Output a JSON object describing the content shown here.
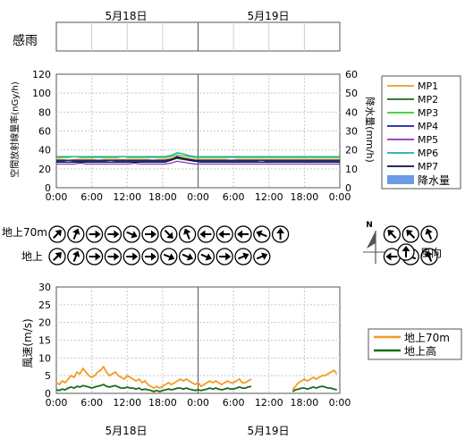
{
  "dates": {
    "day1": "5月18日",
    "day2": "5月19日"
  },
  "rain_panel": {
    "label": "感雨"
  },
  "dose_chart": {
    "type": "line",
    "ylabel_left": "空間放射線量率(nGy/h)",
    "ylabel_right": "降水量(mm/h)",
    "ylim_left": [
      0,
      120
    ],
    "ylim_right": [
      0,
      60
    ],
    "left_ticks": [
      "0",
      "20",
      "40",
      "60",
      "80",
      "100",
      "120"
    ],
    "right_ticks": [
      "0",
      "10",
      "20",
      "30",
      "40",
      "50",
      "60"
    ],
    "x_ticks": [
      "0:00",
      "6:00",
      "12:00",
      "18:00",
      "0:00",
      "6:00",
      "12:00",
      "18:00",
      "0:00"
    ],
    "grid": true,
    "legend_placement": "right",
    "series": [
      {
        "name": "MP1",
        "color": "#f59a23",
        "values": [
          30,
          30,
          29,
          30,
          30,
          30,
          30,
          29,
          30,
          30,
          30,
          30,
          30,
          30,
          30,
          30,
          29,
          30,
          30,
          31,
          33,
          32,
          31,
          30,
          30,
          30,
          30,
          30,
          30,
          29,
          30,
          30,
          30,
          30,
          30,
          30,
          30,
          30,
          30,
          30,
          30,
          30,
          30,
          30,
          30,
          30,
          30,
          30
        ]
      },
      {
        "name": "MP2",
        "color": "#1a6b1a",
        "values": [
          28,
          28,
          27,
          28,
          28,
          28,
          28,
          28,
          28,
          27,
          28,
          28,
          28,
          28,
          28,
          28,
          28,
          28,
          28,
          29,
          31,
          30,
          29,
          28,
          28,
          28,
          28,
          28,
          28,
          28,
          28,
          28,
          28,
          28,
          27,
          28,
          28,
          28,
          28,
          28,
          28,
          28,
          28,
          28,
          28,
          28,
          28,
          28
        ]
      },
      {
        "name": "MP3",
        "color": "#33cc33",
        "values": [
          32,
          32,
          32,
          33,
          32,
          32,
          32,
          32,
          32,
          32,
          32,
          33,
          32,
          32,
          32,
          32,
          32,
          32,
          32,
          33,
          35,
          34,
          33,
          32,
          32,
          32,
          32,
          32,
          32,
          32,
          32,
          32,
          32,
          32,
          32,
          32,
          32,
          32,
          32,
          32,
          32,
          32,
          32,
          32,
          32,
          32,
          32,
          32
        ]
      },
      {
        "name": "MP4",
        "color": "#1a1ab3",
        "values": [
          29,
          29,
          29,
          29,
          29,
          29,
          29,
          29,
          29,
          29,
          29,
          29,
          29,
          29,
          29,
          29,
          29,
          29,
          29,
          30,
          32,
          31,
          30,
          29,
          29,
          29,
          29,
          29,
          29,
          29,
          29,
          29,
          29,
          29,
          29,
          29,
          29,
          29,
          29,
          29,
          29,
          29,
          29,
          29,
          29,
          29,
          29,
          29
        ]
      },
      {
        "name": "MP5",
        "color": "#8e2dc5",
        "values": [
          25,
          25,
          25,
          25,
          26,
          25,
          25,
          25,
          25,
          25,
          25,
          25,
          25,
          26,
          25,
          25,
          25,
          25,
          25,
          26,
          28,
          27,
          26,
          25,
          25,
          25,
          25,
          25,
          25,
          25,
          25,
          25,
          25,
          25,
          25,
          25,
          25,
          25,
          25,
          25,
          25,
          25,
          25,
          25,
          25,
          25,
          25,
          25
        ]
      },
      {
        "name": "MP6",
        "color": "#26a6a6",
        "values": [
          33,
          33,
          33,
          33,
          33,
          33,
          33,
          33,
          33,
          33,
          33,
          33,
          33,
          33,
          33,
          33,
          33,
          33,
          33,
          34,
          37,
          36,
          34,
          33,
          33,
          33,
          33,
          33,
          33,
          33,
          33,
          33,
          33,
          33,
          33,
          33,
          33,
          33,
          33,
          33,
          33,
          33,
          33,
          33,
          33,
          33,
          33,
          33
        ]
      },
      {
        "name": "MP7",
        "color": "#0d0d33",
        "values": [
          27,
          27,
          27,
          27,
          27,
          27,
          27,
          27,
          27,
          27,
          27,
          27,
          27,
          27,
          27,
          27,
          27,
          27,
          27,
          29,
          33,
          31,
          29,
          28,
          27,
          27,
          27,
          27,
          27,
          27,
          27,
          27,
          27,
          27,
          27,
          27,
          27,
          27,
          27,
          27,
          27,
          27,
          27,
          27,
          27,
          27,
          27,
          27
        ]
      }
    ],
    "bar_series": {
      "name": "降水量",
      "color": "#6c9ae6",
      "values": []
    }
  },
  "wind_direction": {
    "row_labels": [
      "地上70m",
      "地上"
    ],
    "rows": [
      [
        "NE",
        "NNE",
        "E",
        "E",
        "ESE",
        "E",
        "SE",
        "NNW",
        "W",
        "W",
        "W",
        "WNW",
        "N",
        "",
        "",
        "",
        "",
        "",
        "NW",
        "NW",
        "NNW"
      ],
      [
        "NE",
        "NNE",
        "E",
        "E",
        "E",
        "E",
        "ESE",
        "ESE",
        "ESE",
        "E",
        "ENE",
        "ENE",
        "",
        "",
        "",
        "",
        "",
        "",
        "W",
        "WNW",
        "NNW"
      ]
    ],
    "compass_label": "N",
    "legend_label": "風向"
  },
  "wind_chart": {
    "type": "line",
    "ylabel": "風速(m/s)",
    "ylim": [
      0,
      30
    ],
    "y_ticks": [
      "0",
      "5",
      "10",
      "15",
      "20",
      "25",
      "30"
    ],
    "x_ticks": [
      "0:00",
      "6:00",
      "12:00",
      "18:00",
      "0:00",
      "6:00",
      "12:00",
      "18:00",
      "0:00"
    ],
    "grid": true,
    "legend_placement": "right",
    "series": [
      {
        "name": "地上70m",
        "color": "#f59a23",
        "x": [
          0,
          0.5,
          1,
          1.5,
          2,
          2.5,
          3,
          3.5,
          4,
          4.5,
          5,
          5.5,
          6,
          6.5,
          7,
          7.5,
          8,
          8.5,
          9,
          9.5,
          10,
          10.5,
          11,
          11.5,
          12,
          12.5,
          13,
          13.5,
          14,
          14.5,
          15,
          15.5,
          16,
          16.5,
          17,
          17.5,
          18,
          18.5,
          19,
          19.5,
          20,
          20.5,
          21,
          21.5,
          22,
          22.5,
          23,
          23.5,
          24,
          24.5,
          25,
          25.5,
          26,
          26.5,
          27,
          27.5,
          28,
          28.5,
          29,
          29.5,
          30,
          30.5,
          31,
          31.5,
          32,
          32.5,
          33,
          null,
          40,
          40.5,
          41,
          41.5,
          42,
          42.5,
          43,
          43.5,
          44,
          44.5,
          45,
          45.5,
          46,
          46.5,
          47,
          47.5
        ],
        "values": [
          3,
          2.5,
          3.5,
          3,
          4,
          5,
          4.5,
          6,
          5.5,
          7,
          6,
          5,
          4.5,
          5,
          6,
          6.5,
          7.5,
          6,
          5,
          5.5,
          6,
          5,
          4.5,
          4,
          5,
          4.5,
          4,
          3.5,
          4,
          3,
          3.5,
          2.5,
          2,
          1.5,
          2,
          1.5,
          2,
          2.5,
          3,
          2.5,
          3,
          3.5,
          4,
          3.5,
          4,
          3.5,
          3,
          2.5,
          3,
          2,
          2.5,
          3,
          3.5,
          3,
          3.5,
          3,
          2.5,
          3,
          3.5,
          3,
          3,
          3.5,
          4,
          3,
          3,
          3.5,
          4,
          null,
          1,
          2,
          3,
          3.5,
          4,
          3.5,
          4,
          4.5,
          4,
          4.5,
          5,
          5,
          5.5,
          6,
          6.5,
          5.5
        ]
      },
      {
        "name": "地上高",
        "color": "#1a6b1a",
        "x": [
          0,
          0.5,
          1,
          1.5,
          2,
          2.5,
          3,
          3.5,
          4,
          4.5,
          5,
          5.5,
          6,
          6.5,
          7,
          7.5,
          8,
          8.5,
          9,
          9.5,
          10,
          10.5,
          11,
          11.5,
          12,
          12.5,
          13,
          13.5,
          14,
          14.5,
          15,
          15.5,
          16,
          16.5,
          17,
          17.5,
          18,
          18.5,
          19,
          19.5,
          20,
          20.5,
          21,
          21.5,
          22,
          22.5,
          23,
          23.5,
          24,
          24.5,
          25,
          25.5,
          26,
          26.5,
          27,
          27.5,
          28,
          28.5,
          29,
          29.5,
          30,
          30.5,
          31,
          31.5,
          32,
          32.5,
          33,
          null,
          40,
          40.5,
          41,
          41.5,
          42,
          42.5,
          43,
          43.5,
          44,
          44.5,
          45,
          45.5,
          46,
          46.5,
          47,
          47.5
        ],
        "values": [
          1,
          0.8,
          1.2,
          1,
          1.5,
          1.8,
          1.5,
          2,
          1.8,
          2.2,
          2,
          1.8,
          1.5,
          1.8,
          2,
          2.2,
          2.5,
          2,
          1.8,
          2,
          2.2,
          1.8,
          1.5,
          1.5,
          1.8,
          1.5,
          1.5,
          1.2,
          1.5,
          1,
          1.2,
          1,
          0.8,
          0.5,
          0.8,
          0.5,
          0.8,
          1,
          1.2,
          1,
          1.2,
          1.5,
          1.5,
          1.2,
          1.5,
          1.2,
          1,
          0.8,
          1,
          0.8,
          1,
          1.2,
          1.5,
          1.2,
          1.5,
          1.2,
          1,
          1.2,
          1.5,
          1.2,
          1.2,
          1.5,
          1.8,
          1.5,
          1.5,
          1.8,
          2,
          null,
          0.5,
          1,
          1.2,
          1.5,
          1.5,
          1.2,
          1.5,
          1.8,
          1.5,
          1.8,
          2,
          1.8,
          1.5,
          1.5,
          1.2,
          1
        ]
      }
    ]
  }
}
